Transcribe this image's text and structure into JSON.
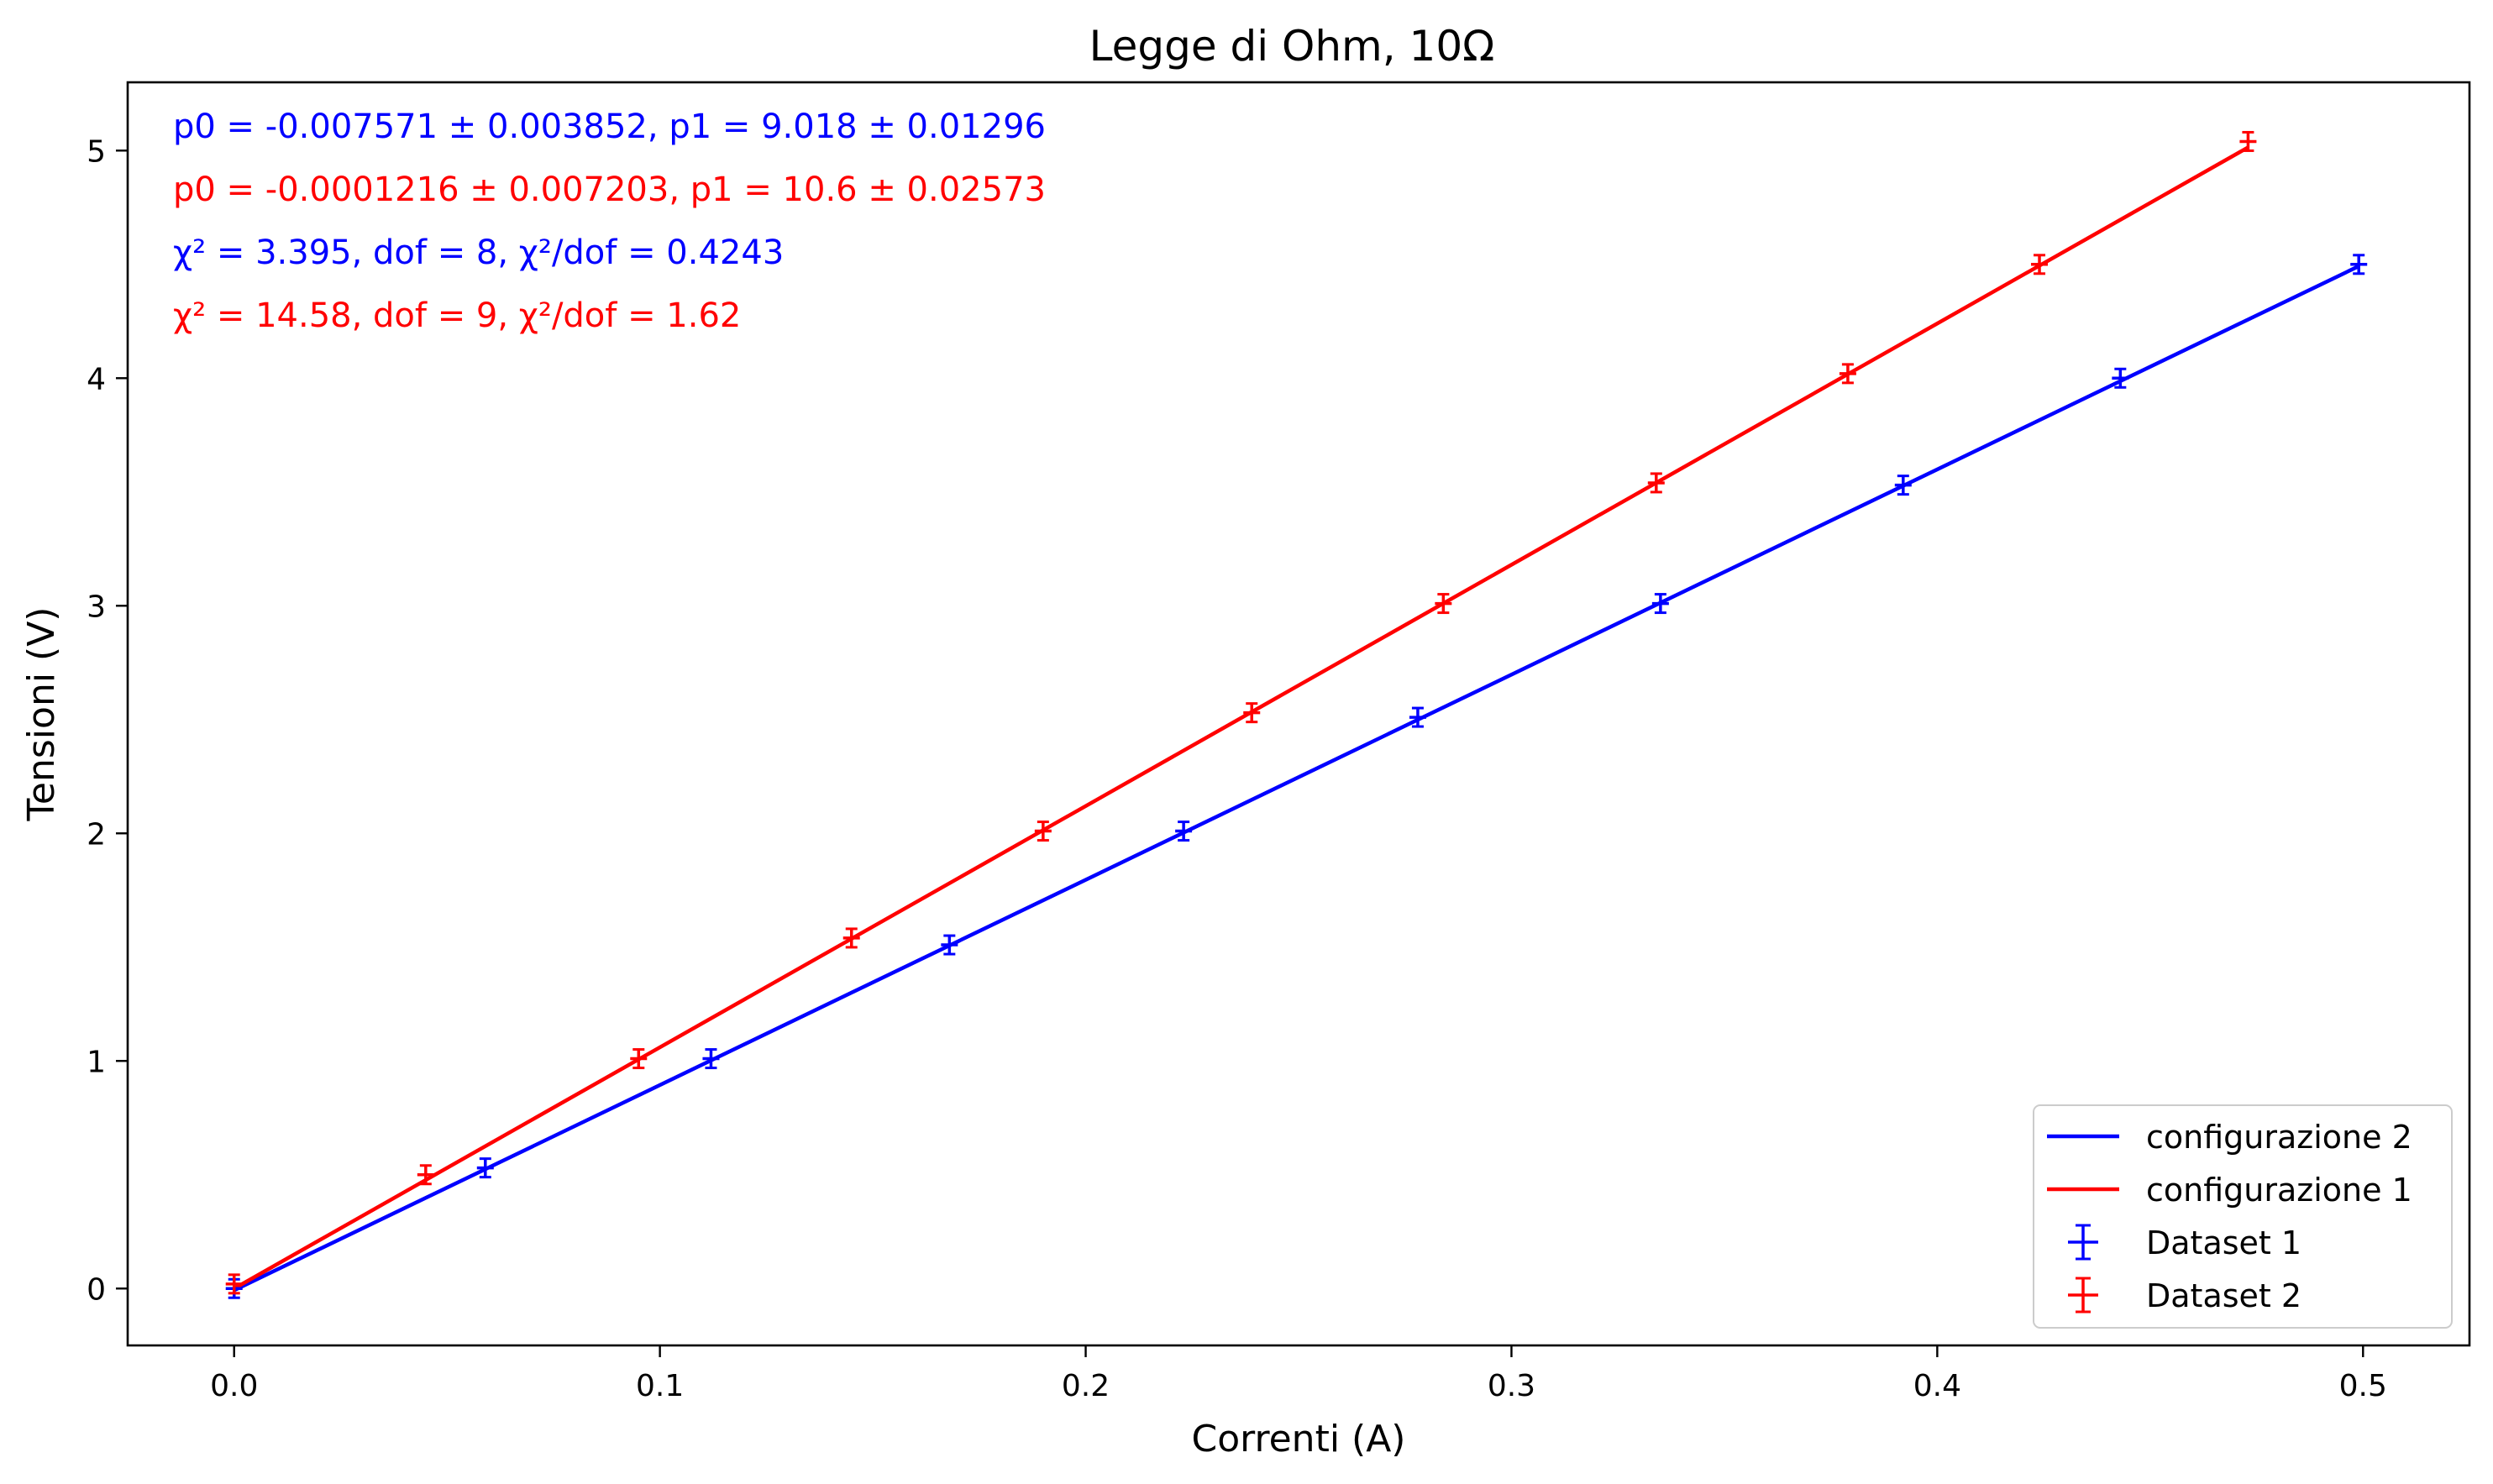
{
  "chart_data": {
    "type": "scatter",
    "title": "Legge di Ohm, 10Ω",
    "xlabel": "Correnti (A)",
    "ylabel": "Tensioni (V)",
    "xlim": [
      -0.025,
      0.525
    ],
    "ylim": [
      -0.25,
      5.3
    ],
    "xticks": [
      0.0,
      0.1,
      0.2,
      0.3,
      0.4,
      0.5
    ],
    "xtick_labels": [
      "0.0",
      "0.1",
      "0.2",
      "0.3",
      "0.4",
      "0.5"
    ],
    "yticks": [
      0,
      1,
      2,
      3,
      4,
      5
    ],
    "ytick_labels": [
      "0",
      "1",
      "2",
      "3",
      "4",
      "5"
    ],
    "grid": false,
    "legend_position": "lower-right",
    "annotations": [
      {
        "text": "p0 = -0.007571 ± 0.003852, p1 = 9.018 ± 0.01296",
        "color": "#0000ff"
      },
      {
        "text": "p0 = -0.0001216 ± 0.007203, p1 = 10.6 ± 0.02573",
        "color": "#ff0000"
      },
      {
        "text": "χ² = 3.395, dof = 8, χ²/dof = 0.4243",
        "color": "#0000ff"
      },
      {
        "text": "χ² = 14.58, dof = 9, χ²/dof = 1.62",
        "color": "#ff0000"
      }
    ],
    "fit_lines": [
      {
        "name": "configurazione 2",
        "color": "#0000ff",
        "x": [
          0.0,
          0.499
        ],
        "y": [
          -0.007571,
          4.492
        ]
      },
      {
        "name": "configurazione 1",
        "color": "#ff0000",
        "x": [
          0.0,
          0.473
        ],
        "y": [
          -0.0001216,
          5.014
        ]
      }
    ],
    "series": [
      {
        "name": "Dataset 1",
        "color": "#0000ff",
        "x": [
          0.0,
          0.059,
          0.112,
          0.168,
          0.223,
          0.278,
          0.335,
          0.392,
          0.443,
          0.499
        ],
        "y": [
          0.0,
          0.53,
          1.01,
          1.51,
          2.01,
          2.51,
          3.01,
          3.53,
          4.0,
          4.5
        ]
      },
      {
        "name": "Dataset 2",
        "color": "#ff0000",
        "x": [
          0.0,
          0.045,
          0.095,
          0.145,
          0.19,
          0.239,
          0.284,
          0.334,
          0.379,
          0.424,
          0.473
        ],
        "y": [
          0.02,
          0.5,
          1.01,
          1.54,
          2.01,
          2.53,
          3.01,
          3.54,
          4.02,
          4.5,
          5.04
        ]
      }
    ]
  }
}
